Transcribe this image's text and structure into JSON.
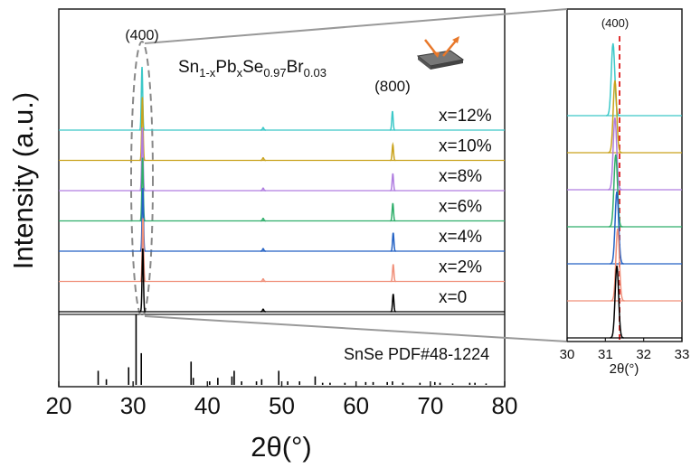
{
  "chart_data": [
    {
      "type": "line",
      "formula": [
        "Sn",
        "1-x",
        "Pb",
        "x",
        "Se",
        "0.97",
        "Br",
        "0.03"
      ],
      "xlabel": "2θ(°)",
      "ylabel": "Intensity (a.u.)",
      "annotations": [
        {
          "text": "(400)",
          "x": 31.2
        },
        {
          "text": "(800)",
          "x": 64.9
        }
      ],
      "xlim": [
        20,
        80
      ],
      "xticks": [
        20,
        30,
        40,
        50,
        60,
        70,
        80
      ],
      "ylim": [
        0,
        100
      ],
      "series": [
        {
          "name": "x=12%",
          "color": "#3cc8c8",
          "x": [
            31.2,
            47.5,
            64.9
          ],
          "values": [
            100,
            4,
            30
          ]
        },
        {
          "name": "x=10%",
          "color": "#c9a21c",
          "x": [
            31.25,
            47.5,
            64.95
          ],
          "values": [
            100,
            4,
            25
          ]
        },
        {
          "name": "x=8%",
          "color": "#b07ee0",
          "x": [
            31.25,
            47.5,
            64.95
          ],
          "values": [
            100,
            4,
            27
          ]
        },
        {
          "name": "x=6%",
          "color": "#2fae6a",
          "x": [
            31.27,
            47.5,
            64.95
          ],
          "values": [
            100,
            4,
            28
          ]
        },
        {
          "name": "x=4%",
          "color": "#2462c4",
          "x": [
            31.3,
            47.5,
            65.0
          ],
          "values": [
            100,
            4,
            29
          ]
        },
        {
          "name": "x=2%",
          "color": "#f0907a",
          "x": [
            31.32,
            47.5,
            65.0
          ],
          "values": [
            100,
            4,
            27
          ]
        },
        {
          "name": "x=0",
          "color": "#000000",
          "x": [
            31.3,
            47.5,
            65.0
          ],
          "values": [
            100,
            4,
            28
          ]
        }
      ],
      "reference": {
        "name": "SnSe PDF#48-1224",
        "color": "#000000",
        "x": [
          25.3,
          26.4,
          29.4,
          30.4,
          31.1,
          37.8,
          38.1,
          40.3,
          41.4,
          43.3,
          43.6,
          44.6,
          46.6,
          47.3,
          49.6,
          50.8,
          52.4,
          54.5,
          55.5,
          56.5,
          58.5,
          61.3,
          62.3,
          64.2,
          64.9,
          66.3,
          68.6,
          70.6,
          71.3,
          73.0,
          75.3,
          76.0,
          77.5
        ],
        "values": [
          20,
          8,
          25,
          100,
          45,
          33,
          10,
          5,
          10,
          12,
          20,
          5,
          5,
          8,
          20,
          5,
          5,
          12,
          3,
          3,
          3,
          4,
          4,
          4,
          5,
          3,
          3,
          4,
          3,
          2,
          3,
          3,
          2
        ]
      }
    },
    {
      "type": "line",
      "annotation": "(400)",
      "xlabel": "2θ(°)",
      "xlim": [
        30,
        33
      ],
      "xticks": [
        30,
        31,
        32,
        33
      ],
      "ref_line": 31.37,
      "ref_color": "#e03030"
    }
  ]
}
